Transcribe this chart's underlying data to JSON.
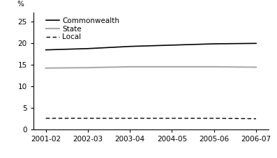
{
  "x_labels": [
    "2001-02",
    "2002-03",
    "2003-04",
    "2004-05",
    "2005-06",
    "2006-07"
  ],
  "commonwealth": [
    18.4,
    18.7,
    19.2,
    19.5,
    19.8,
    19.9
  ],
  "state": [
    14.2,
    14.3,
    14.5,
    14.5,
    14.5,
    14.4
  ],
  "local": [
    2.6,
    2.6,
    2.6,
    2.6,
    2.6,
    2.5
  ],
  "commonwealth_color": "#000000",
  "state_color": "#aaaaaa",
  "local_color": "#000000",
  "ylabel": "%",
  "ylim": [
    0,
    27
  ],
  "yticks": [
    0,
    5,
    10,
    15,
    20,
    25
  ],
  "legend_labels": [
    "Commonwealth",
    "State",
    "Local"
  ],
  "background_color": "#ffffff",
  "font_size": 7.5
}
